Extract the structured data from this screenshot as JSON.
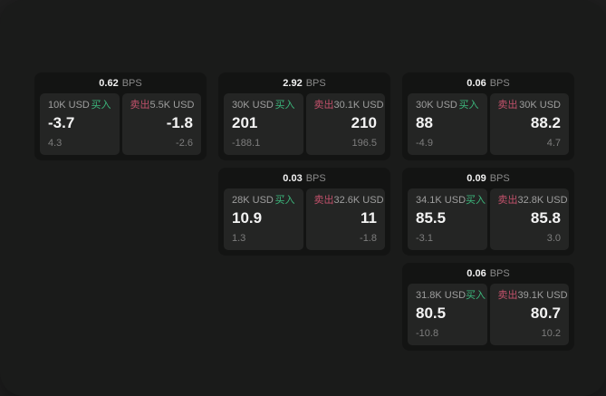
{
  "labels": {
    "buy": "买入",
    "sell": "卖出",
    "bps_unit": "BPS"
  },
  "colors": {
    "buy": "#3cb77c",
    "sell": "#c2516b",
    "card_background": "#131413",
    "panel_background": "#242524",
    "page_background": "#1a1b1a"
  },
  "cards": [
    {
      "row": 1,
      "col": 1,
      "bps": "0.62",
      "buy": {
        "amount": "10K USD",
        "price": "-3.7",
        "delta": "4.3"
      },
      "sell": {
        "amount": "5.5K USD",
        "price": "-1.8",
        "delta": "-2.6"
      }
    },
    {
      "row": 1,
      "col": 2,
      "bps": "2.92",
      "buy": {
        "amount": "30K USD",
        "price": "201",
        "delta": "-188.1"
      },
      "sell": {
        "amount": "30.1K USD",
        "price": "210",
        "delta": "196.5"
      }
    },
    {
      "row": 1,
      "col": 3,
      "bps": "0.06",
      "buy": {
        "amount": "30K USD",
        "price": "88",
        "delta": "-4.9"
      },
      "sell": {
        "amount": "30K USD",
        "price": "88.2",
        "delta": "4.7"
      }
    },
    {
      "row": 2,
      "col": 2,
      "bps": "0.03",
      "buy": {
        "amount": "28K USD",
        "price": "10.9",
        "delta": "1.3"
      },
      "sell": {
        "amount": "32.6K USD",
        "price": "11",
        "delta": "-1.8"
      }
    },
    {
      "row": 2,
      "col": 3,
      "bps": "0.09",
      "buy": {
        "amount": "34.1K USD",
        "price": "85.5",
        "delta": "-3.1"
      },
      "sell": {
        "amount": "32.8K USD",
        "price": "85.8",
        "delta": "3.0"
      }
    },
    {
      "row": 3,
      "col": 3,
      "bps": "0.06",
      "buy": {
        "amount": "31.8K USD",
        "price": "80.5",
        "delta": "-10.8"
      },
      "sell": {
        "amount": "39.1K USD",
        "price": "80.7",
        "delta": "10.2"
      }
    }
  ]
}
